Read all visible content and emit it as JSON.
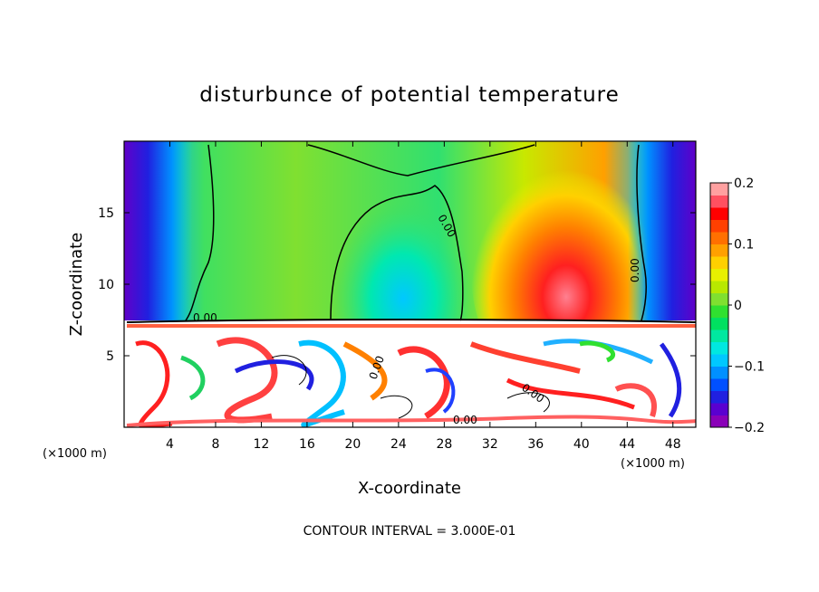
{
  "chart_data": {
    "type": "heatmap",
    "title": "disturbunce of potential temperature",
    "xlabel": "X-coordinate",
    "ylabel": "Z-coordinate",
    "x_unit": "(×1000 m)",
    "y_unit": "",
    "xlim": [
      0,
      50
    ],
    "ylim": [
      0,
      20
    ],
    "xticks": [
      4,
      8,
      12,
      16,
      20,
      24,
      28,
      32,
      36,
      40,
      44,
      48
    ],
    "yticks": [
      5,
      10,
      15
    ],
    "colorbar": {
      "range": [
        -0.2,
        0.2
      ],
      "ticks": [
        0.2,
        0.1,
        0,
        -0.1,
        -0.2
      ],
      "tick_labels": [
        "0.2",
        "0.1",
        "0",
        "−0.1",
        "−0.2"
      ],
      "colors": [
        "#8a00b8",
        "#5a00d0",
        "#2020e0",
        "#0050ff",
        "#0090ff",
        "#00c8ff",
        "#00e8e0",
        "#00e8a0",
        "#00e060",
        "#30e030",
        "#80e030",
        "#b8e800",
        "#e8f000",
        "#ffd000",
        "#ffa000",
        "#ff7000",
        "#ff4000",
        "#ff0000",
        "#ff5060",
        "#ffa0a0"
      ]
    },
    "contour_labels": [
      "0.00",
      "0.00",
      "0.00",
      "0.00",
      "0.00",
      "0.00"
    ],
    "contour_interval_text": "CONTOUR INTERVAL = 3.000E-01",
    "grid": false
  }
}
